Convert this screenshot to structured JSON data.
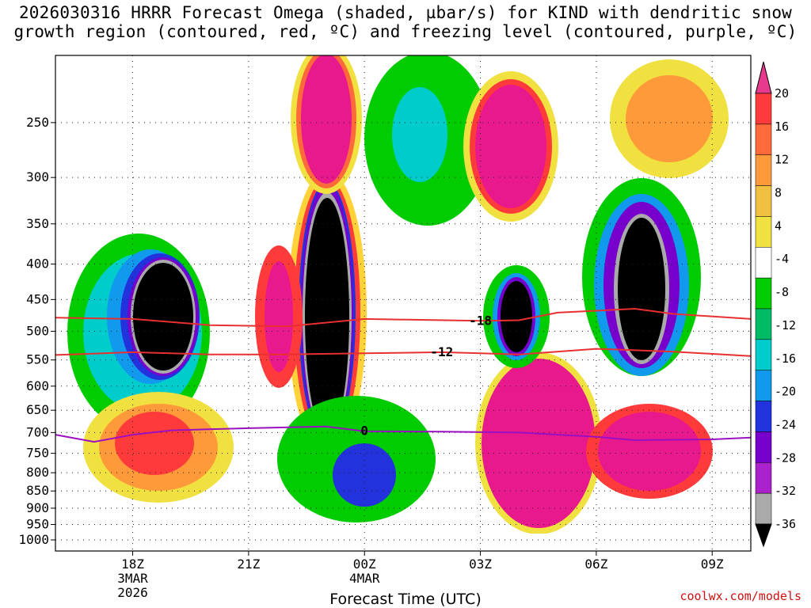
{
  "title_line1": "2026030316 HRRR Forecast Omega (shaded, µbar/s) for KIND with dendritic snow",
  "title_line2": "growth region (contoured, red, ºC) and freezing level (contoured, purple, ºC)",
  "credit": "coolwx.com/models",
  "chart_data": {
    "type": "heatmap",
    "title": "2026030316 HRRR Forecast Omega (shaded, µbar/s) for KIND with dendritic snow growth region (contoured, red, ºC) and freezing level (contoured, purple, ºC)",
    "xlabel": "Forecast Time (UTC)",
    "ylabel": "",
    "x_ticks": [
      {
        "label": "18Z",
        "sub1": "3MAR",
        "sub2": "2026",
        "hour": 18
      },
      {
        "label": "21Z",
        "sub1": "",
        "sub2": "",
        "hour": 21
      },
      {
        "label": "00Z",
        "sub1": "4MAR",
        "sub2": "",
        "hour": 24
      },
      {
        "label": "03Z",
        "sub1": "",
        "sub2": "",
        "hour": 27
      },
      {
        "label": "06Z",
        "sub1": "",
        "sub2": "",
        "hour": 30
      },
      {
        "label": "09Z",
        "sub1": "",
        "sub2": "",
        "hour": 33
      }
    ],
    "x_range_hours": [
      16,
      34
    ],
    "y_ticks": [
      250,
      300,
      350,
      400,
      450,
      500,
      550,
      600,
      650,
      700,
      750,
      800,
      850,
      900,
      950,
      1000
    ],
    "y_range_hPa": [
      200,
      1000
    ],
    "colorbar": {
      "labels": [
        "20",
        "16",
        "12",
        "8",
        "4",
        "-4",
        "-8",
        "-12",
        "-16",
        "-20",
        "-24",
        "-28",
        "-32",
        "-36"
      ],
      "colors": [
        "#e83a8c",
        "#ff3a3a",
        "#ff6a3a",
        "#ff9a3a",
        "#f0c040",
        "#f0e040",
        "#ffffff",
        "#00cc00",
        "#00bb66",
        "#00cccc",
        "#1199ee",
        "#2233dd",
        "#7700cc",
        "#aa22cc",
        "#aaaaaa",
        "#000000"
      ]
    },
    "contours": [
      {
        "name": "dendritic-upper",
        "label": "-18",
        "color": "#e83030",
        "points": [
          [
            16,
            478
          ],
          [
            18,
            480
          ],
          [
            20,
            490
          ],
          [
            22,
            492
          ],
          [
            24,
            480
          ],
          [
            27,
            483
          ],
          [
            28,
            482
          ],
          [
            29,
            470
          ],
          [
            31,
            464
          ],
          [
            32,
            472
          ],
          [
            34,
            480
          ]
        ]
      },
      {
        "name": "dendritic-lower",
        "label": "-12",
        "color": "#e83030",
        "points": [
          [
            16,
            541
          ],
          [
            18,
            536
          ],
          [
            20,
            540
          ],
          [
            22,
            540
          ],
          [
            24,
            538
          ],
          [
            26,
            536
          ],
          [
            27,
            538
          ],
          [
            28,
            540
          ],
          [
            30,
            530
          ],
          [
            32,
            535
          ],
          [
            34,
            543
          ]
        ]
      },
      {
        "name": "freezing-level",
        "label": "0",
        "color": "#9a10c0",
        "points": [
          [
            16,
            705
          ],
          [
            17,
            722
          ],
          [
            18,
            705
          ],
          [
            19,
            695
          ],
          [
            21,
            690
          ],
          [
            23,
            686
          ],
          [
            24,
            697
          ],
          [
            26,
            698
          ],
          [
            28,
            700
          ],
          [
            30,
            710
          ],
          [
            31,
            718
          ],
          [
            33,
            716
          ],
          [
            34,
            712
          ]
        ]
      }
    ]
  }
}
